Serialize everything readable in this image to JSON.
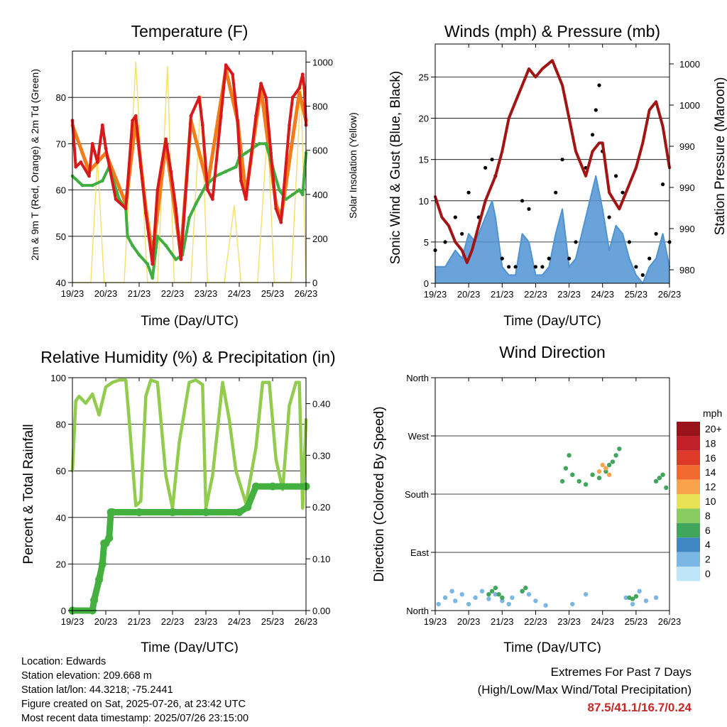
{
  "colors": {
    "temp_2m": "#d7191c",
    "temp_9m": "#f07c1a",
    "dewpoint": "#3fae3f",
    "solar": "#f5df6b",
    "wind": "#4f93d2",
    "gust": "#000000",
    "pressure": "#a11515",
    "rh": "#92cc4f",
    "precip": "#43b03f",
    "extremes": "#c62828"
  },
  "chart_data": [
    {
      "type": "line",
      "title": "Temperature (F)",
      "xlabel": "Time (Day/UTC)",
      "ylabel": "2m & 9m T (Red, Orange) & 2m Td (Green)",
      "y2label": "Solar Insolation (Yellow)",
      "x_ticks": [
        "19/23",
        "20/23",
        "21/23",
        "22/23",
        "23/23",
        "24/23",
        "25/23",
        "26/23"
      ],
      "ylim": [
        40,
        90
      ],
      "y_ticks": [
        40,
        50,
        60,
        70,
        80
      ],
      "y2lim": [
        0,
        1050
      ],
      "y2_ticks": [
        0,
        200,
        400,
        600,
        800,
        1000
      ],
      "grid": "horizontal",
      "series": [
        {
          "name": "2m T",
          "color": "#d7191c",
          "axis": "left",
          "x": [
            0,
            0.1,
            0.25,
            0.5,
            0.6,
            0.75,
            0.9,
            1.0,
            1.3,
            1.6,
            1.8,
            1.9,
            2.05,
            2.2,
            2.4,
            2.55,
            2.8,
            2.95,
            3.1,
            3.25,
            3.45,
            3.55,
            3.8,
            3.9,
            4.05,
            4.2,
            4.45,
            4.6,
            4.8,
            4.95,
            5.05,
            5.2,
            5.5,
            5.65,
            5.8,
            5.95,
            6.1,
            6.25,
            6.5,
            6.6,
            6.8,
            6.9,
            6.95,
            7.0
          ],
          "y": [
            75,
            65,
            66,
            63,
            70,
            66,
            74,
            69,
            58,
            56,
            75,
            76,
            65,
            55,
            44,
            60,
            71,
            64,
            56,
            45,
            65,
            76,
            80,
            74,
            60,
            58,
            76,
            87,
            85,
            75,
            62,
            58,
            76,
            83,
            80,
            68,
            56,
            53,
            74,
            80,
            82,
            85,
            82,
            74
          ]
        },
        {
          "name": "9m T",
          "color": "#f07c1a",
          "axis": "left",
          "x": [
            0,
            0.5,
            1.0,
            1.6,
            1.9,
            2.2,
            2.4,
            2.8,
            3.25,
            3.55,
            4.05,
            4.6,
            4.95,
            5.2,
            5.65,
            6.1,
            6.25,
            6.8,
            7.0
          ],
          "y": [
            74,
            64,
            68,
            57,
            75,
            56,
            46,
            70,
            46,
            75,
            61,
            86,
            75,
            59,
            82,
            57,
            54,
            81,
            75
          ]
        },
        {
          "name": "2m Td",
          "color": "#3fae3f",
          "axis": "left",
          "x": [
            0,
            0.3,
            0.6,
            0.9,
            1.1,
            1.4,
            1.6,
            1.65,
            1.8,
            2.0,
            2.25,
            2.4,
            2.55,
            2.8,
            3.1,
            3.3,
            3.5,
            3.7,
            4.0,
            4.3,
            4.6,
            4.9,
            5.0,
            5.2,
            5.4,
            5.6,
            5.8,
            6.0,
            6.2,
            6.4,
            6.6,
            6.8,
            6.9,
            7.0
          ],
          "y": [
            63,
            61,
            61,
            62,
            65,
            58,
            56,
            50,
            48,
            46,
            44,
            41,
            50,
            48,
            45,
            46,
            54,
            57,
            61,
            63,
            64,
            65,
            67,
            68,
            69,
            70,
            70,
            65,
            60,
            58,
            59,
            60,
            59,
            68
          ]
        },
        {
          "name": "Solar Insolation",
          "color": "#f5df6b",
          "axis": "right",
          "x": [
            0,
            0.55,
            0.75,
            0.95,
            1.2,
            1.5,
            1.55,
            1.9,
            2.25,
            2.55,
            2.85,
            3.05,
            3.1,
            3.55,
            3.85,
            4.05,
            4.55,
            4.85,
            5.05,
            5.55,
            5.85,
            6.05,
            6.55,
            6.85,
            7.0
          ],
          "y": [
            0,
            0,
            560,
            0,
            0,
            0,
            0,
            1000,
            0,
            0,
            980,
            0,
            0,
            0,
            850,
            0,
            0,
            350,
            0,
            0,
            700,
            0,
            0,
            900,
            0
          ]
        }
      ]
    },
    {
      "type": "line",
      "title": "Winds (mph) & Pressure (mb)",
      "xlabel": "Time (Day/UTC)",
      "ylabel": "Sonic Wind & Gust (Blue, Black)",
      "y2label": "Station Pressure (Maroon)",
      "x_ticks": [
        "19/23",
        "20/23",
        "21/23",
        "22/23",
        "23/23",
        "24/23",
        "25/23",
        "26/23"
      ],
      "ylim": [
        0,
        29
      ],
      "y_ticks": [
        0,
        5,
        10,
        15,
        20,
        25
      ],
      "y2_tick_labels": [
        "980",
        "990",
        "990",
        "990",
        "1000",
        "1000"
      ],
      "grid": "horizontal",
      "series": [
        {
          "name": "Wind",
          "color": "#4f93d2",
          "axis": "left",
          "x": [
            0,
            0.3,
            0.6,
            0.8,
            1.0,
            1.2,
            1.5,
            1.7,
            1.8,
            2.0,
            2.2,
            2.4,
            2.6,
            2.8,
            3.0,
            3.2,
            3.4,
            3.6,
            3.8,
            4.0,
            4.2,
            4.5,
            4.8,
            4.9,
            5.0,
            5.2,
            5.4,
            5.6,
            5.8,
            6.0,
            6.2,
            6.4,
            6.6,
            6.8,
            7.0
          ],
          "y": [
            2,
            2,
            4,
            3,
            6,
            5,
            8,
            10,
            8,
            2,
            1,
            1,
            6,
            5,
            1,
            1,
            2,
            6,
            9,
            2,
            3,
            8,
            13,
            11,
            9,
            4,
            7,
            6,
            3,
            1,
            0,
            2,
            3,
            6,
            2
          ]
        },
        {
          "name": "Gust",
          "color": "#000000",
          "axis": "left",
          "x": [
            0,
            0.3,
            0.6,
            0.8,
            1.0,
            1.3,
            1.5,
            1.7,
            1.8,
            2.0,
            2.2,
            2.4,
            2.6,
            2.8,
            3.0,
            3.2,
            3.4,
            3.6,
            3.8,
            4.0,
            4.2,
            4.5,
            4.7,
            4.8,
            4.9,
            5.0,
            5.2,
            5.4,
            5.6,
            5.8,
            6.0,
            6.2,
            6.4,
            6.6,
            6.8,
            7.0
          ],
          "y": [
            4,
            5,
            8,
            6,
            11,
            8,
            14,
            15,
            13,
            3,
            2,
            2,
            10,
            9,
            2,
            2,
            3,
            11,
            15,
            3,
            5,
            14,
            18,
            21,
            24,
            16,
            8,
            13,
            11,
            5,
            2,
            1,
            3,
            6,
            12,
            5
          ]
        },
        {
          "name": "Station Pressure",
          "color": "#a11515",
          "axis": "left",
          "x": [
            0,
            0.2,
            0.4,
            0.6,
            0.8,
            0.95,
            1.1,
            1.3,
            1.5,
            1.8,
            2.0,
            2.2,
            2.4,
            2.6,
            2.8,
            3.0,
            3.2,
            3.5,
            3.8,
            4.0,
            4.2,
            4.5,
            4.7,
            4.9,
            5.0,
            5.2,
            5.5,
            5.8,
            6.0,
            6.2,
            6.4,
            6.6,
            6.8,
            7.0
          ],
          "y": [
            10.5,
            8,
            7,
            5,
            4,
            2.5,
            4,
            7,
            10,
            13,
            16,
            20,
            22,
            24,
            26,
            25,
            26,
            27,
            24,
            20,
            16,
            13,
            16,
            17,
            17,
            11,
            9,
            12,
            14,
            17,
            21,
            22,
            19,
            14
          ]
        }
      ]
    },
    {
      "type": "line",
      "title": "Relative Humidity (%) & Precipitation (in)",
      "xlabel": "Time (Day/UTC)",
      "ylabel": "Percent & Total Rainfall",
      "x_ticks": [
        "19/23",
        "20/23",
        "21/23",
        "22/23",
        "23/23",
        "24/23",
        "25/23",
        "26/23"
      ],
      "ylim": [
        0,
        100
      ],
      "y_ticks": [
        0,
        20,
        40,
        60,
        80,
        100
      ],
      "y2lim": [
        0,
        0.45
      ],
      "y2_ticks": [
        "0.00",
        "0.10",
        "0.20",
        "0.30",
        "0.40"
      ],
      "grid": "horizontal",
      "series": [
        {
          "name": "Relative Humidity",
          "color": "#92cc4f",
          "axis": "left",
          "x": [
            0,
            0.1,
            0.2,
            0.4,
            0.6,
            0.8,
            1.0,
            1.2,
            1.4,
            1.6,
            1.7,
            1.9,
            2.05,
            2.2,
            2.35,
            2.55,
            2.8,
            3.0,
            3.2,
            3.5,
            3.7,
            3.9,
            4.0,
            4.2,
            4.5,
            4.7,
            4.9,
            5.2,
            5.5,
            5.7,
            5.9,
            6.1,
            6.3,
            6.5,
            6.7,
            6.8,
            6.9,
            7.0
          ],
          "y": [
            60,
            90,
            92,
            89,
            93,
            84,
            96,
            98,
            99,
            99,
            82,
            45,
            47,
            92,
            99,
            98,
            58,
            44,
            72,
            98,
            99,
            97,
            44,
            58,
            98,
            82,
            60,
            46,
            70,
            98,
            98,
            65,
            52,
            88,
            98,
            98,
            44,
            82
          ]
        },
        {
          "name": "Total Precipitation",
          "color": "#43b03f",
          "axis": "right",
          "x": [
            0,
            0.6,
            0.65,
            0.8,
            0.9,
            0.95,
            1.0,
            1.1,
            1.15,
            1.2,
            2.0,
            3.0,
            4.0,
            5.0,
            5.25,
            5.5,
            6.0,
            7.0
          ],
          "y": [
            0,
            0,
            0.02,
            0.06,
            0.09,
            0.13,
            0.13,
            0.14,
            0.19,
            0.19,
            0.19,
            0.19,
            0.19,
            0.19,
            0.2,
            0.24,
            0.24,
            0.24
          ]
        }
      ]
    },
    {
      "type": "scatter",
      "title": "Wind Direction",
      "xlabel": "Time (Day/UTC)",
      "ylabel": "Direction (Colored By Speed)",
      "x_ticks": [
        "19/23",
        "20/23",
        "21/23",
        "22/23",
        "23/23",
        "24/23",
        "25/23",
        "26/23"
      ],
      "y_ticks": [
        "North",
        "East",
        "South",
        "West",
        "North"
      ],
      "ylim": [
        0,
        360
      ],
      "grid": "horizontal",
      "legend": {
        "title": "mph",
        "position": "right",
        "labels": [
          "20+",
          "18",
          "16",
          "14",
          "12",
          "10",
          "8",
          "6",
          "4",
          "2",
          "0"
        ],
        "colors": [
          "#99131b",
          "#c0202a",
          "#dd3a2a",
          "#f16a30",
          "#f9a44c",
          "#e9e257",
          "#8bcc61",
          "#41a65c",
          "#3f86c3",
          "#7ab7e4",
          "#bfe5f8"
        ]
      },
      "series": [
        {
          "name": "North",
          "speed": 2,
          "x": [
            0.1,
            0.3,
            0.5,
            0.6,
            0.8,
            1.0,
            1.2,
            1.4,
            1.6,
            1.8,
            2.0,
            2.2,
            2.3,
            2.6,
            2.8,
            3.0,
            3.3,
            4.1,
            4.5,
            5.7,
            5.9,
            6.1,
            6.3,
            6.6
          ],
          "y": [
            10,
            20,
            30,
            15,
            25,
            10,
            20,
            30,
            18,
            25,
            15,
            10,
            20,
            30,
            25,
            15,
            8,
            10,
            25,
            20,
            10,
            30,
            15,
            20
          ]
        },
        {
          "name": "North-moderate",
          "speed": 6,
          "x": [
            1.6,
            1.7,
            1.8,
            1.9,
            2.0,
            2.6,
            2.7,
            5.8,
            5.9,
            6.0
          ],
          "y": [
            25,
            30,
            35,
            25,
            20,
            30,
            35,
            20,
            18,
            22
          ]
        },
        {
          "name": "Southwest",
          "speed": 6,
          "x": [
            3.8,
            3.9,
            4.0,
            4.1,
            4.3,
            4.5,
            4.7,
            4.9,
            5.1,
            5.2,
            5.3,
            5.4,
            5.5,
            6.6,
            6.7,
            6.8,
            6.9
          ],
          "y": [
            200,
            220,
            240,
            210,
            200,
            195,
            210,
            205,
            215,
            225,
            230,
            240,
            250,
            200,
            205,
            210,
            190
          ]
        },
        {
          "name": "Southwest-strong",
          "speed": 12,
          "x": [
            4.9,
            5.0,
            5.1,
            5.2
          ],
          "y": [
            215,
            225,
            220,
            210
          ]
        }
      ]
    }
  ],
  "footer": {
    "location": "Location: Edwards",
    "elevation": "Station elevation: 209.668 m",
    "latlon": "Station lat/lon: 44.3218; -75.2441",
    "created": "Figure created on Sat, 2025-07-26, at 23:42 UTC",
    "recent": "Most recent data timestamp: 2025/07/26 23:15:00"
  },
  "extremes": {
    "title": "Extremes For Past 7 Days",
    "subtitle": "(High/Low/Max Wind/Total Precipitation)",
    "values": "87.5/41.1/16.7/0.24"
  }
}
